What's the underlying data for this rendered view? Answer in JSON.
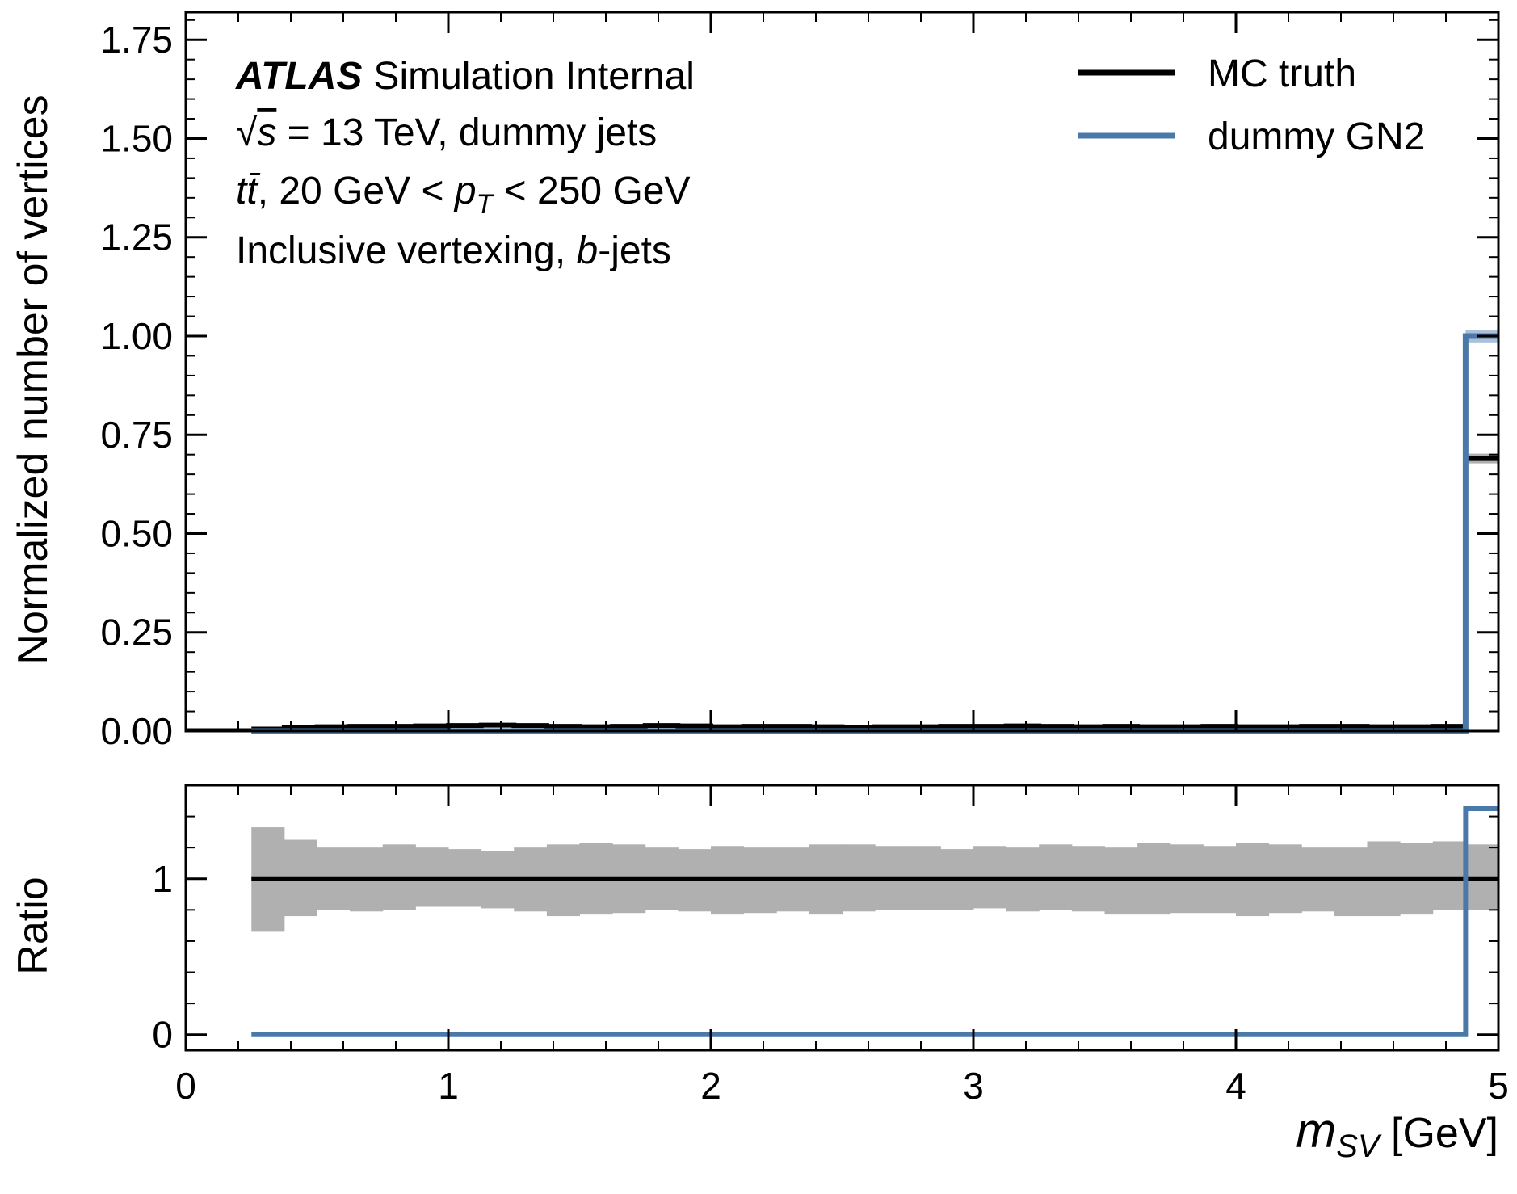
{
  "chart_data": [
    {
      "panel": "main",
      "type": "line",
      "step": true,
      "annotations": {
        "experiment": "ATLAS",
        "status": "Simulation Internal",
        "energy_prefix": "√",
        "energy_symbol": "s",
        "energy_suffix": " = 13 TeV, dummy jets",
        "sample_prefix": "t",
        "sample_bar": "t̄",
        "sample_suffix": ", 20 GeV  < ",
        "pt_symbol": "p",
        "pt_sub": "T",
        "pt_suffix": " < 250 GeV",
        "vertexing_prefix": "Inclusive vertexing, ",
        "vertexing_b": "b",
        "vertexing_suffix": "-jets"
      },
      "ylabel": "Normalized number of vertices",
      "ylim": [
        0,
        1.82
      ],
      "yticks": [
        0,
        0.25,
        0.5,
        0.75,
        1.0,
        1.25,
        1.5,
        1.75
      ],
      "ytick_labels": [
        "0.00",
        "0.25",
        "0.50",
        "0.75",
        "1.00",
        "1.25",
        "1.50",
        "1.75"
      ],
      "xlim": [
        0,
        5
      ],
      "legend": "top-right",
      "x": [
        0.25,
        0.375,
        0.5,
        0.625,
        0.75,
        0.875,
        1.0,
        1.125,
        1.25,
        1.375,
        1.5,
        1.625,
        1.75,
        1.875,
        2.0,
        2.125,
        2.25,
        2.375,
        2.5,
        2.625,
        2.75,
        2.875,
        3.0,
        3.125,
        3.25,
        3.375,
        3.5,
        3.625,
        3.75,
        3.875,
        4.0,
        4.125,
        4.25,
        4.375,
        4.5,
        4.625,
        4.75,
        4.875,
        5.0
      ],
      "series": [
        {
          "name": "MC truth",
          "color": "#000000",
          "values": [
            0.005,
            0.01,
            0.011,
            0.012,
            0.012,
            0.013,
            0.014,
            0.015,
            0.014,
            0.012,
            0.011,
            0.012,
            0.014,
            0.013,
            0.011,
            0.012,
            0.012,
            0.011,
            0.01,
            0.011,
            0.011,
            0.012,
            0.012,
            0.013,
            0.012,
            0.011,
            0.012,
            0.011,
            0.011,
            0.012,
            0.011,
            0.011,
            0.012,
            0.012,
            0.011,
            0.011,
            0.012,
            0.69,
            0.69
          ],
          "band_color": "#b0b0b0"
        },
        {
          "name": "dummy GN2",
          "color": "#4a78a8",
          "values": [
            0,
            0,
            0,
            0,
            0,
            0,
            0,
            0,
            0,
            0,
            0,
            0,
            0,
            0,
            0,
            0,
            0,
            0,
            0,
            0,
            0,
            0,
            0,
            0,
            0,
            0,
            0,
            0,
            0,
            0,
            0,
            0,
            0,
            0,
            0,
            0,
            0,
            1.0,
            1.0
          ],
          "band_color": "#a9c0d8"
        }
      ]
    },
    {
      "panel": "ratio",
      "type": "line",
      "step": true,
      "ylabel": "Ratio",
      "ylim": [
        -0.1,
        1.6
      ],
      "yticks": [
        0,
        1
      ],
      "ytick_labels": [
        "0",
        "1"
      ],
      "xlim": [
        0,
        5
      ],
      "xticks": [
        0,
        1,
        2,
        3,
        4,
        5
      ],
      "xtick_labels": [
        "0",
        "1",
        "2",
        "3",
        "4",
        "5"
      ],
      "xlabel_symbol": "m",
      "xlabel_sub": "SV",
      "xlabel_suffix": " [GeV]",
      "x": [
        0.25,
        0.375,
        0.5,
        0.625,
        0.75,
        0.875,
        1.0,
        1.125,
        1.25,
        1.375,
        1.5,
        1.625,
        1.75,
        1.875,
        2.0,
        2.125,
        2.25,
        2.375,
        2.5,
        2.625,
        2.75,
        2.875,
        3.0,
        3.125,
        3.25,
        3.375,
        3.5,
        3.625,
        3.75,
        3.875,
        4.0,
        4.125,
        4.25,
        4.375,
        4.5,
        4.625,
        4.75,
        4.875,
        5.0
      ],
      "band": {
        "color": "#b0b0b0",
        "upper": [
          1.33,
          1.25,
          1.2,
          1.2,
          1.22,
          1.2,
          1.19,
          1.18,
          1.2,
          1.22,
          1.23,
          1.22,
          1.2,
          1.19,
          1.21,
          1.2,
          1.2,
          1.22,
          1.22,
          1.21,
          1.21,
          1.19,
          1.21,
          1.2,
          1.22,
          1.21,
          1.2,
          1.23,
          1.22,
          1.21,
          1.23,
          1.22,
          1.2,
          1.2,
          1.24,
          1.23,
          1.24,
          1.22
        ],
        "lower": [
          0.66,
          0.76,
          0.8,
          0.79,
          0.8,
          0.82,
          0.82,
          0.81,
          0.79,
          0.76,
          0.77,
          0.78,
          0.8,
          0.79,
          0.77,
          0.78,
          0.79,
          0.77,
          0.79,
          0.8,
          0.8,
          0.8,
          0.81,
          0.79,
          0.8,
          0.79,
          0.77,
          0.77,
          0.78,
          0.78,
          0.76,
          0.78,
          0.79,
          0.76,
          0.76,
          0.77,
          0.8,
          0.8
        ]
      },
      "series": [
        {
          "name": "MC truth",
          "color": "#000000",
          "values": [
            1,
            1,
            1,
            1,
            1,
            1,
            1,
            1,
            1,
            1,
            1,
            1,
            1,
            1,
            1,
            1,
            1,
            1,
            1,
            1,
            1,
            1,
            1,
            1,
            1,
            1,
            1,
            1,
            1,
            1,
            1,
            1,
            1,
            1,
            1,
            1,
            1,
            1,
            1
          ]
        },
        {
          "name": "dummy GN2",
          "color": "#4a78a8",
          "values": [
            0,
            0,
            0,
            0,
            0,
            0,
            0,
            0,
            0,
            0,
            0,
            0,
            0,
            0,
            0,
            0,
            0,
            0,
            0,
            0,
            0,
            0,
            0,
            0,
            0,
            0,
            0,
            0,
            0,
            0,
            0,
            0,
            0,
            0,
            0,
            0,
            0,
            1.45,
            1.45
          ]
        }
      ]
    }
  ]
}
